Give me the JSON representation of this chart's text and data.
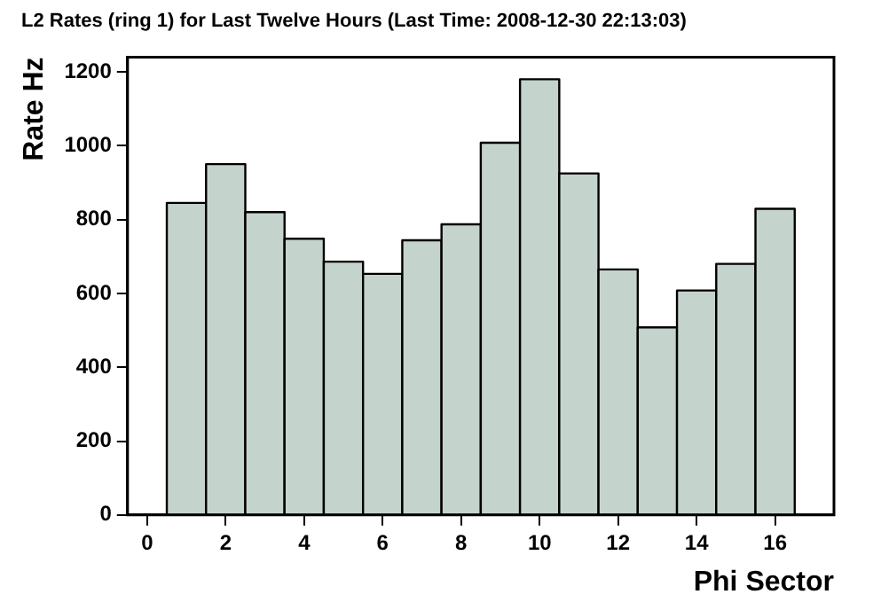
{
  "chart_data": {
    "type": "histogram",
    "title": "L2 Rates (ring 1) for Last Twelve Hours (Last Time: 2008-12-30 22:13:03)",
    "xlabel": "Phi Sector",
    "ylabel": "Rate Hz",
    "bins": [
      0.5,
      1.5,
      2.5,
      3.5,
      4.5,
      5.5,
      6.5,
      7.5,
      8.5,
      9.5,
      10.5,
      11.5,
      12.5,
      13.5,
      14.5,
      15.5,
      16.5
    ],
    "values": [
      845,
      950,
      820,
      748,
      686,
      653,
      744,
      787,
      1008,
      1180,
      925,
      665,
      508,
      608,
      680,
      829
    ],
    "color": "#c4d4cc",
    "xlim": [
      -0.5,
      17.5
    ],
    "xticks": [
      0,
      2,
      4,
      6,
      8,
      10,
      12,
      14,
      16
    ],
    "ylim": [
      0,
      1240
    ],
    "yticks": [
      0,
      200,
      400,
      600,
      800,
      {
        "value": 1000,
        "label": "1000"
      },
      {
        "value": 1200,
        "label": "1200"
      }
    ],
    "grid": false,
    "legend": false
  }
}
